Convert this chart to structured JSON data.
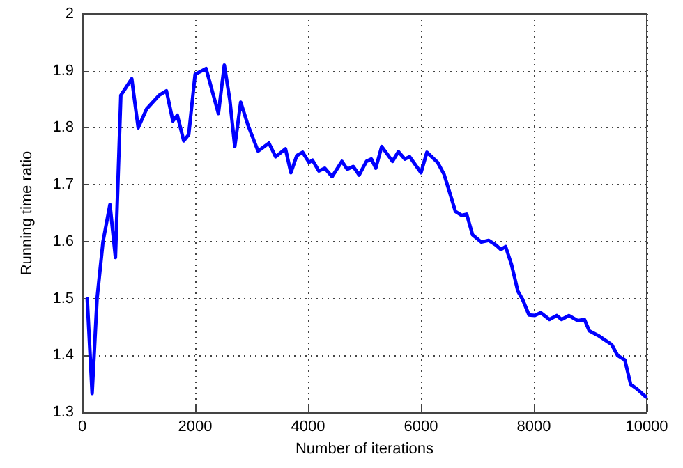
{
  "chart_data": {
    "type": "line",
    "xlabel": "Number of iterations",
    "ylabel": "Running time ratio",
    "x": [
      88,
      175,
      263,
      368,
      491,
      588,
      684,
      877,
      991,
      1140,
      1360,
      1491,
      1605,
      1684,
      1798,
      1886,
      2000,
      2193,
      2412,
      2517,
      2614,
      2702,
      2807,
      2938,
      3114,
      3307,
      3426,
      3600,
      3696,
      3800,
      3904,
      4017,
      4078,
      4191,
      4296,
      4426,
      4600,
      4696,
      4800,
      4905,
      5035,
      5122,
      5200,
      5305,
      5496,
      5600,
      5714,
      5801,
      6001,
      6105,
      6296,
      6410,
      6497,
      6610,
      6724,
      6810,
      6914,
      7069,
      7198,
      7328,
      7414,
      7500,
      7603,
      7716,
      7802,
      7914,
      8017,
      8121,
      8276,
      8405,
      8491,
      8621,
      8776,
      8896,
      8983,
      9138,
      9379,
      9483,
      9612,
      9715,
      9828,
      9983
    ],
    "series": [
      {
        "color": "#0000ff",
        "values": [
          1.5,
          1.333,
          1.5,
          1.6,
          1.665,
          1.572,
          1.857,
          1.886,
          1.8,
          1.833,
          1.857,
          1.865,
          1.812,
          1.822,
          1.777,
          1.788,
          1.894,
          1.904,
          1.825,
          1.91,
          1.849,
          1.767,
          1.845,
          1.804,
          1.759,
          1.773,
          1.749,
          1.763,
          1.721,
          1.751,
          1.757,
          1.739,
          1.743,
          1.724,
          1.729,
          1.714,
          1.741,
          1.727,
          1.732,
          1.717,
          1.741,
          1.745,
          1.729,
          1.767,
          1.741,
          1.758,
          1.745,
          1.749,
          1.721,
          1.757,
          1.739,
          1.718,
          1.69,
          1.653,
          1.646,
          1.648,
          1.612,
          1.599,
          1.602,
          1.594,
          1.586,
          1.591,
          1.56,
          1.513,
          1.498,
          1.471,
          1.47,
          1.475,
          1.463,
          1.47,
          1.463,
          1.47,
          1.461,
          1.463,
          1.443,
          1.435,
          1.419,
          1.4,
          1.392,
          1.349,
          1.341,
          1.327
        ]
      }
    ],
    "xlim": [
      0,
      10000
    ],
    "xticks": [
      0,
      2000,
      4000,
      6000,
      8000,
      10000
    ],
    "ylim": [
      1.3,
      2
    ],
    "yticks": [
      1.3,
      1.4,
      1.5,
      1.6,
      1.7,
      1.8,
      1.9,
      2
    ],
    "grid": true,
    "marker": "none",
    "line_style": "solid"
  }
}
